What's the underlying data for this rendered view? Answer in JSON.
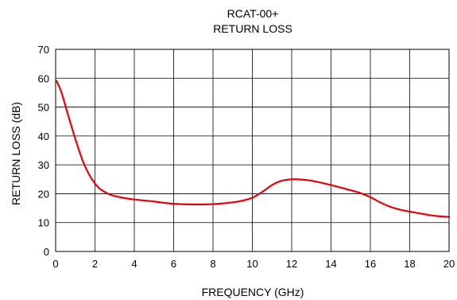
{
  "chart_data": {
    "type": "line",
    "title": "RCAT-00+",
    "subtitle": "RETURN LOSS",
    "xlabel": "FREQUENCY (GHz)",
    "ylabel": "RETURN LOSS (dB)",
    "xlim": [
      0,
      20
    ],
    "ylim": [
      0,
      70
    ],
    "xticks": [
      0,
      2,
      4,
      6,
      8,
      10,
      12,
      14,
      16,
      18,
      20
    ],
    "yticks": [
      0,
      10,
      20,
      30,
      40,
      50,
      60,
      70
    ],
    "xtick_labels": [
      "0",
      "2",
      "4",
      "6",
      "8",
      "10",
      "12",
      "14",
      "16",
      "18",
      "20"
    ],
    "ytick_labels": [
      "0",
      "10",
      "20",
      "30",
      "40",
      "50",
      "60",
      "70"
    ],
    "grid": true,
    "legend": false,
    "series": [
      {
        "color": "#e8000b",
        "x": [
          0.05,
          0.3,
          0.6,
          1.0,
          1.4,
          1.8,
          2.2,
          2.6,
          3.0,
          3.5,
          4.0,
          5.0,
          6.0,
          7.0,
          8.0,
          9.0,
          9.5,
          10.0,
          10.5,
          11.0,
          11.5,
          12.0,
          12.5,
          13.0,
          14.0,
          15.0,
          15.5,
          16.0,
          16.5,
          17.0,
          17.5,
          18.0,
          18.5,
          19.0,
          19.5,
          20.0
        ],
        "y": [
          59,
          55,
          48,
          39,
          31,
          25.5,
          22.0,
          20.2,
          19.2,
          18.5,
          18.0,
          17.3,
          16.5,
          16.3,
          16.4,
          17.0,
          17.6,
          18.6,
          20.6,
          23.0,
          24.5,
          25.0,
          24.9,
          24.5,
          23.0,
          21.2,
          20.2,
          18.8,
          17.0,
          15.5,
          14.5,
          13.8,
          13.2,
          12.6,
          12.2,
          12.0
        ]
      }
    ]
  }
}
